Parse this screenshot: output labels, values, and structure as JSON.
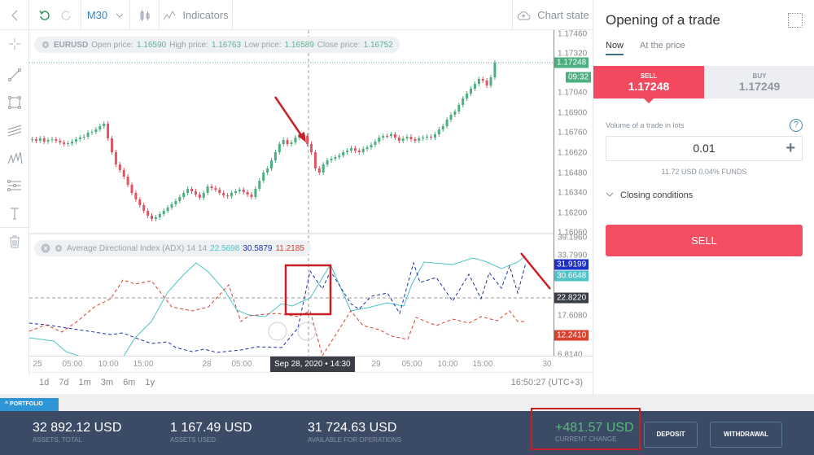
{
  "toolbar": {
    "back_icon": "‹",
    "timeframe": "M30",
    "indicators_label": "Indicators",
    "chart_state_label": "Chart state"
  },
  "left_tools": [
    "crosshair-icon",
    "trend-line-icon",
    "rectangle-icon",
    "parallel-channel-icon",
    "pattern-icon",
    "fib-icon",
    "text-icon",
    "trash-icon"
  ],
  "price_info": {
    "symbol": "EURUSD",
    "open_label": "Open price:",
    "open": "1.16590",
    "high_label": "High price:",
    "high": "1.16763",
    "low_label": "Low price:",
    "low": "1.16589",
    "close_label": "Close price:",
    "close": "1.16752"
  },
  "indicator_info": {
    "name": "Average Directional Index (ADX) 14 14",
    "adx": "22.5698",
    "plus_di": "30.5879",
    "minus_di": "11.2185"
  },
  "price_axis": [
    "1.17460",
    "1.17320",
    "1.17040",
    "1.16900",
    "1.16760",
    "1.16620",
    "1.16480",
    "1.16340",
    "1.16200",
    "1.16060"
  ],
  "price_tags": {
    "current": "1.17248",
    "timer": "09:32"
  },
  "adx_axis": [
    "39.1960",
    "33.7990",
    "17.6080",
    "6.8140"
  ],
  "adx_tags": {
    "plus_di": "31.9199",
    "adx": "30.6648",
    "crosshair": "22.8220",
    "minus_di": "12.2410"
  },
  "x_axis": [
    "25",
    "05:00",
    "10:00",
    "15:00",
    "28",
    "05:00",
    "29",
    "05:00",
    "10:00",
    "15:00",
    "30"
  ],
  "x_crosshair": "Sep 28, 2020 • 14:30",
  "ranges": [
    "1d",
    "7d",
    "1m",
    "3m",
    "6m",
    "1y"
  ],
  "clock": "16:50:27 (UTC+3)",
  "panel": {
    "title": "Opening of a trade",
    "tabs": [
      "Now",
      "At the price"
    ],
    "sell_label": "SELL",
    "sell_price": "1.17248",
    "buy_label": "BUY",
    "buy_price": "1.17249",
    "volume_label": "Volume of a trade in lots",
    "volume_value": "0.01",
    "volume_sub": "11.72 USD   0.04% FUNDS",
    "closing_label": "Closing conditions",
    "sell_button": "SELL"
  },
  "portfolio": {
    "tab_label": "PORTFOLIO",
    "stats": [
      {
        "value": "32 892.12 USD",
        "label": "ASSETS, TOTAL"
      },
      {
        "value": "1 167.49 USD",
        "label": "ASSETS USED"
      },
      {
        "value": "31 724.63 USD",
        "label": "AVAILABLE FOR OPERATIONS"
      }
    ],
    "change_value": "+481.57 USD",
    "change_label": "CURRENT CHANGE",
    "deposit": "DEPOSIT",
    "withdrawal": "WITHDRAWAL"
  },
  "colors": {
    "sell": "#f2495f",
    "up": "#4caf7f",
    "down": "#e05563",
    "adx": "#4fc3c8",
    "plus_di": "#1c2fa8",
    "minus_di": "#d9402e",
    "footer": "#3b4b66"
  }
}
